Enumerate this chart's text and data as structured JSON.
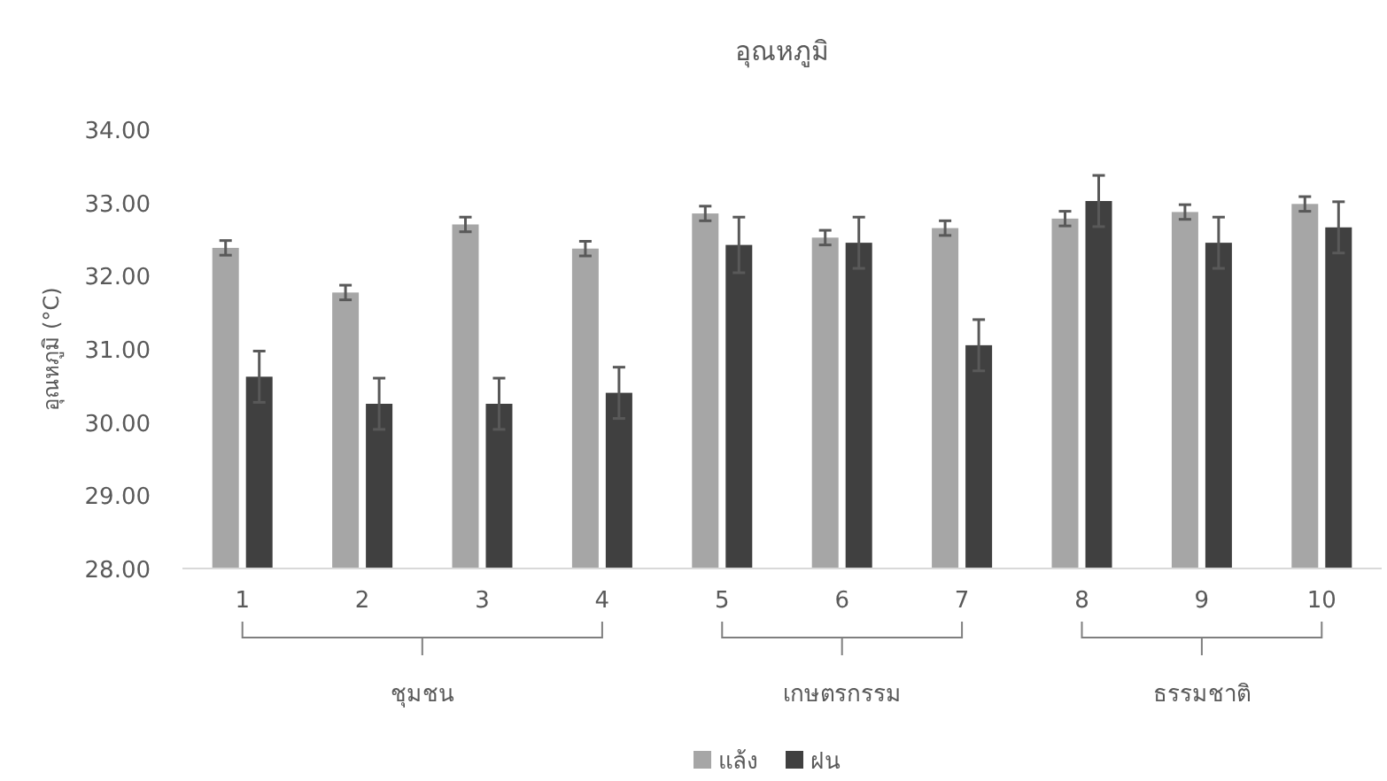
{
  "chart_data": {
    "type": "bar",
    "title": "อุณหภูมิ",
    "ylabel": "อุณหภูมิ (°C)",
    "categories": [
      "1",
      "2",
      "3",
      "4",
      "5",
      "6",
      "7",
      "8",
      "9",
      "10"
    ],
    "series": [
      {
        "name": "แล้ง",
        "color": "#a6a6a6",
        "values": [
          32.38,
          31.77,
          32.7,
          32.37,
          32.85,
          32.52,
          32.65,
          32.78,
          32.87,
          32.98
        ],
        "errors": [
          0.1,
          0.1,
          0.1,
          0.1,
          0.1,
          0.1,
          0.1,
          0.1,
          0.1,
          0.1
        ]
      },
      {
        "name": "ฝน",
        "color": "#404040",
        "values": [
          30.62,
          30.25,
          30.25,
          30.4,
          32.42,
          32.45,
          31.05,
          33.02,
          32.45,
          32.66
        ],
        "errors": [
          0.35,
          0.35,
          0.35,
          0.35,
          0.38,
          0.35,
          0.35,
          0.35,
          0.35,
          0.35
        ]
      }
    ],
    "ylim": [
      28,
      34
    ],
    "yticks": [
      {
        "value": 28,
        "label": "28.00"
      },
      {
        "value": 29,
        "label": "29.00"
      },
      {
        "value": 30,
        "label": "30.00"
      },
      {
        "value": 31,
        "label": "31.00"
      },
      {
        "value": 32,
        "label": "32.00"
      },
      {
        "value": 33,
        "label": "33.00"
      },
      {
        "value": 34,
        "label": "34.00"
      }
    ],
    "annotations": [
      "ชุมชน",
      "เกษตรกรรม",
      "ธรรมชาติ"
    ],
    "grid": false,
    "legend": "bottom"
  }
}
